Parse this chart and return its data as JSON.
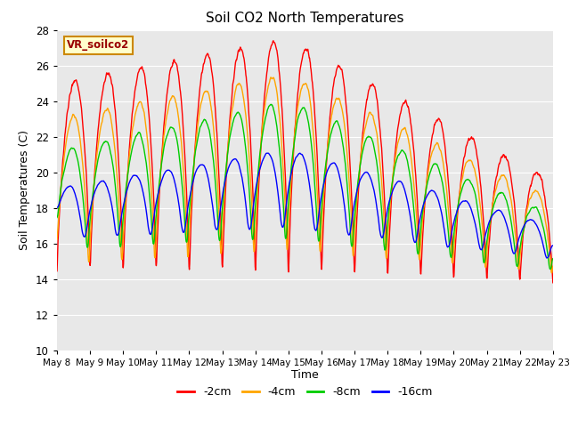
{
  "title": "Soil CO2 North Temperatures",
  "xlabel": "Time",
  "ylabel": "Soil Temperatures (C)",
  "ylim": [
    10,
    28
  ],
  "annotation": "VR_soilco2",
  "legend": [
    "-2cm",
    "-4cm",
    "-8cm",
    "-16cm"
  ],
  "colors": [
    "#ff0000",
    "#ffa500",
    "#00cc00",
    "#0000ff"
  ],
  "fig_bg_color": "#ffffff",
  "plot_bg_color": "#e8e8e8",
  "x_tick_labels": [
    "May 8",
    "May 9",
    "May 10",
    "May 11",
    "May 12",
    "May 13",
    "May 14",
    "May 15",
    "May 16",
    "May 17",
    "May 18",
    "May 19",
    "May 20",
    "May 21",
    "May 22",
    "May 23"
  ],
  "grid_color": "#ffffff",
  "yticks": [
    10,
    12,
    14,
    16,
    18,
    20,
    22,
    24,
    26,
    28
  ]
}
